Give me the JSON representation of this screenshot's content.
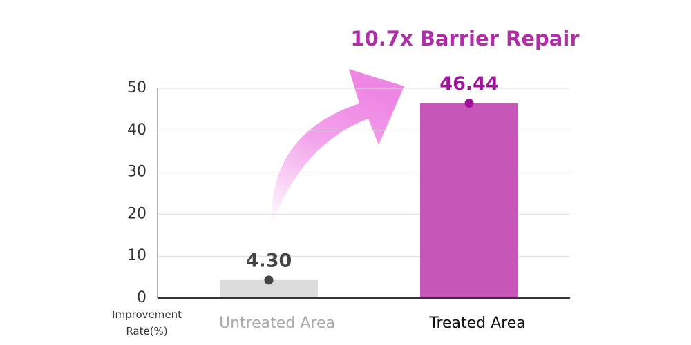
{
  "chart_data": {
    "type": "bar",
    "title": "10.7x Barrier Repair",
    "y_label": "Improvement Rate(%)",
    "categories": [
      "Untreated Area",
      "Treated Area"
    ],
    "values": [
      4.3,
      46.44
    ],
    "value_labels": [
      "4.30",
      "46.44"
    ],
    "colors": [
      "#dcdcdc",
      "#c657b9"
    ],
    "dot_colors": [
      "#444444",
      "#a0149b"
    ],
    "label_colors": [
      "#aaaaaa",
      "#111111"
    ],
    "value_label_colors": [
      "#444444",
      "#a0149b"
    ],
    "ylim": [
      0,
      50
    ],
    "yticks": [
      0,
      10,
      20,
      30,
      40,
      50
    ],
    "grid": true
  }
}
